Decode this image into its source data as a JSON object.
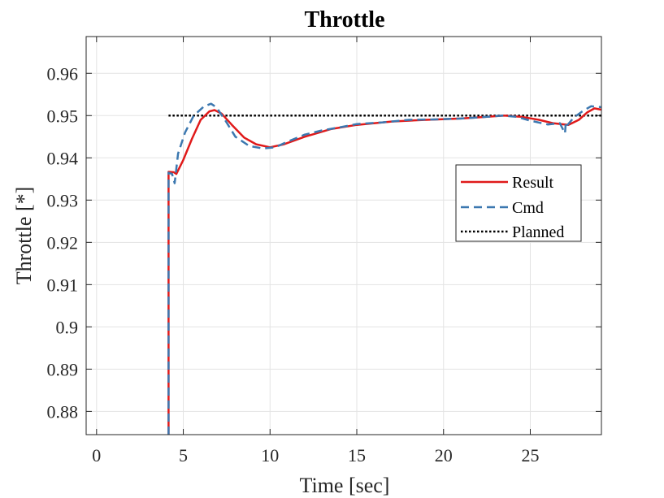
{
  "chart_data": {
    "type": "line",
    "title": "Throttle",
    "xlabel": "Time [sec]",
    "ylabel": "Throttle [*]",
    "xlim": [
      -0.6,
      29.1
    ],
    "ylim": [
      0.8745,
      0.9687
    ],
    "xticks": [
      0,
      5,
      10,
      15,
      20,
      25
    ],
    "xtick_labels": [
      "0",
      "5",
      "10",
      "15",
      "20",
      "25"
    ],
    "yticks": [
      0.88,
      0.89,
      0.9,
      0.91,
      0.92,
      0.93,
      0.94,
      0.95,
      0.96
    ],
    "ytick_labels": [
      "0.88",
      "0.89",
      "0.9",
      "0.91",
      "0.92",
      "0.93",
      "0.94",
      "0.95",
      "0.96"
    ],
    "grid": true,
    "legend_position": "right-middle",
    "colors": {
      "result": "#e01a1a",
      "cmd": "#3c78b0",
      "planned": "#000000"
    },
    "series": [
      {
        "name": "Result",
        "style": "solid",
        "x": [
          4.15,
          4.15,
          4.45,
          4.6,
          5.0,
          5.5,
          6.0,
          6.5,
          6.8,
          7.2,
          7.8,
          8.5,
          9.2,
          10.0,
          10.8,
          12.0,
          13.5,
          15.0,
          17.0,
          19.0,
          21.0,
          22.5,
          23.5,
          24.5,
          25.5,
          26.3,
          27.2,
          27.8,
          28.3,
          28.7,
          29.1
        ],
        "y": [
          0.8745,
          0.9367,
          0.9366,
          0.9362,
          0.9395,
          0.9445,
          0.949,
          0.951,
          0.9513,
          0.9505,
          0.9478,
          0.9448,
          0.9432,
          0.9425,
          0.9432,
          0.945,
          0.9468,
          0.9478,
          0.9486,
          0.949,
          0.9493,
          0.9497,
          0.95,
          0.9497,
          0.949,
          0.9482,
          0.9478,
          0.949,
          0.9508,
          0.9517,
          0.9514
        ]
      },
      {
        "name": "Cmd",
        "style": "dashed",
        "x": [
          4.15,
          4.15,
          4.35,
          4.5,
          4.7,
          5.1,
          5.6,
          6.2,
          6.6,
          6.9,
          7.4,
          8.0,
          8.8,
          9.6,
          10.3,
          11.0,
          12.0,
          13.0,
          14.0,
          15.0,
          16.5,
          18.0,
          19.5,
          21.0,
          22.5,
          23.4,
          24.2,
          25.0,
          26.0,
          26.7,
          27.0,
          27.05,
          27.15,
          27.5,
          28.0,
          28.5,
          29.1
        ],
        "y": [
          0.8745,
          0.9365,
          0.9362,
          0.934,
          0.941,
          0.946,
          0.95,
          0.9522,
          0.9528,
          0.952,
          0.949,
          0.945,
          0.9428,
          0.9422,
          0.9425,
          0.9438,
          0.9455,
          0.9465,
          0.9472,
          0.948,
          0.9484,
          0.949,
          0.9491,
          0.9493,
          0.9497,
          0.95,
          0.9497,
          0.9488,
          0.9479,
          0.9482,
          0.9458,
          0.9485,
          0.9478,
          0.9495,
          0.951,
          0.9522,
          0.952
        ]
      },
      {
        "name": "Planned",
        "style": "dotted",
        "x": [
          4.15,
          29.1
        ],
        "y": [
          0.95,
          0.95
        ]
      }
    ]
  }
}
